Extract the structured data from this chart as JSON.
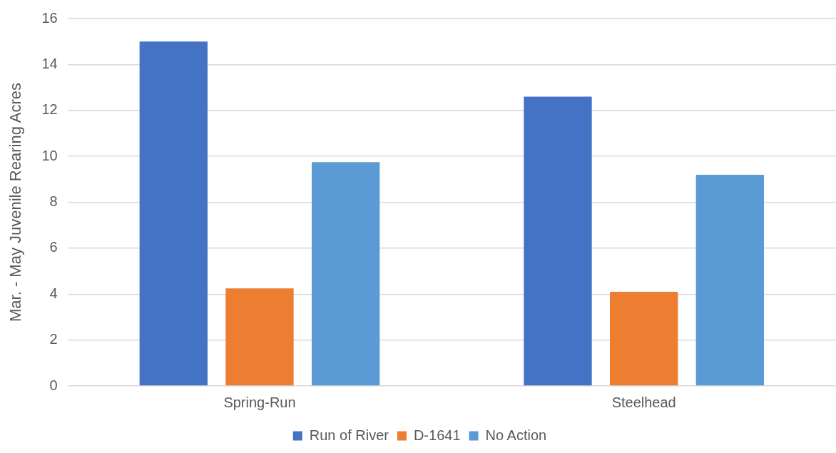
{
  "chart_data": {
    "type": "bar",
    "ylabel": "Mar. - May Juvenile Rearing Acres",
    "categories": [
      "Spring-Run",
      "Steelhead"
    ],
    "series": [
      {
        "name": "Run of River",
        "color": "#4472c4",
        "values": [
          15.0,
          12.6
        ]
      },
      {
        "name": "D-1641",
        "color": "#ed7d31",
        "values": [
          4.25,
          4.1
        ]
      },
      {
        "name": "No Action",
        "color": "#5b9bd5",
        "values": [
          9.75,
          9.2
        ]
      }
    ],
    "ylim": [
      0,
      16
    ],
    "yticks": [
      0,
      2,
      4,
      6,
      8,
      10,
      12,
      14,
      16
    ],
    "grid": "y",
    "legend": "bottom"
  }
}
